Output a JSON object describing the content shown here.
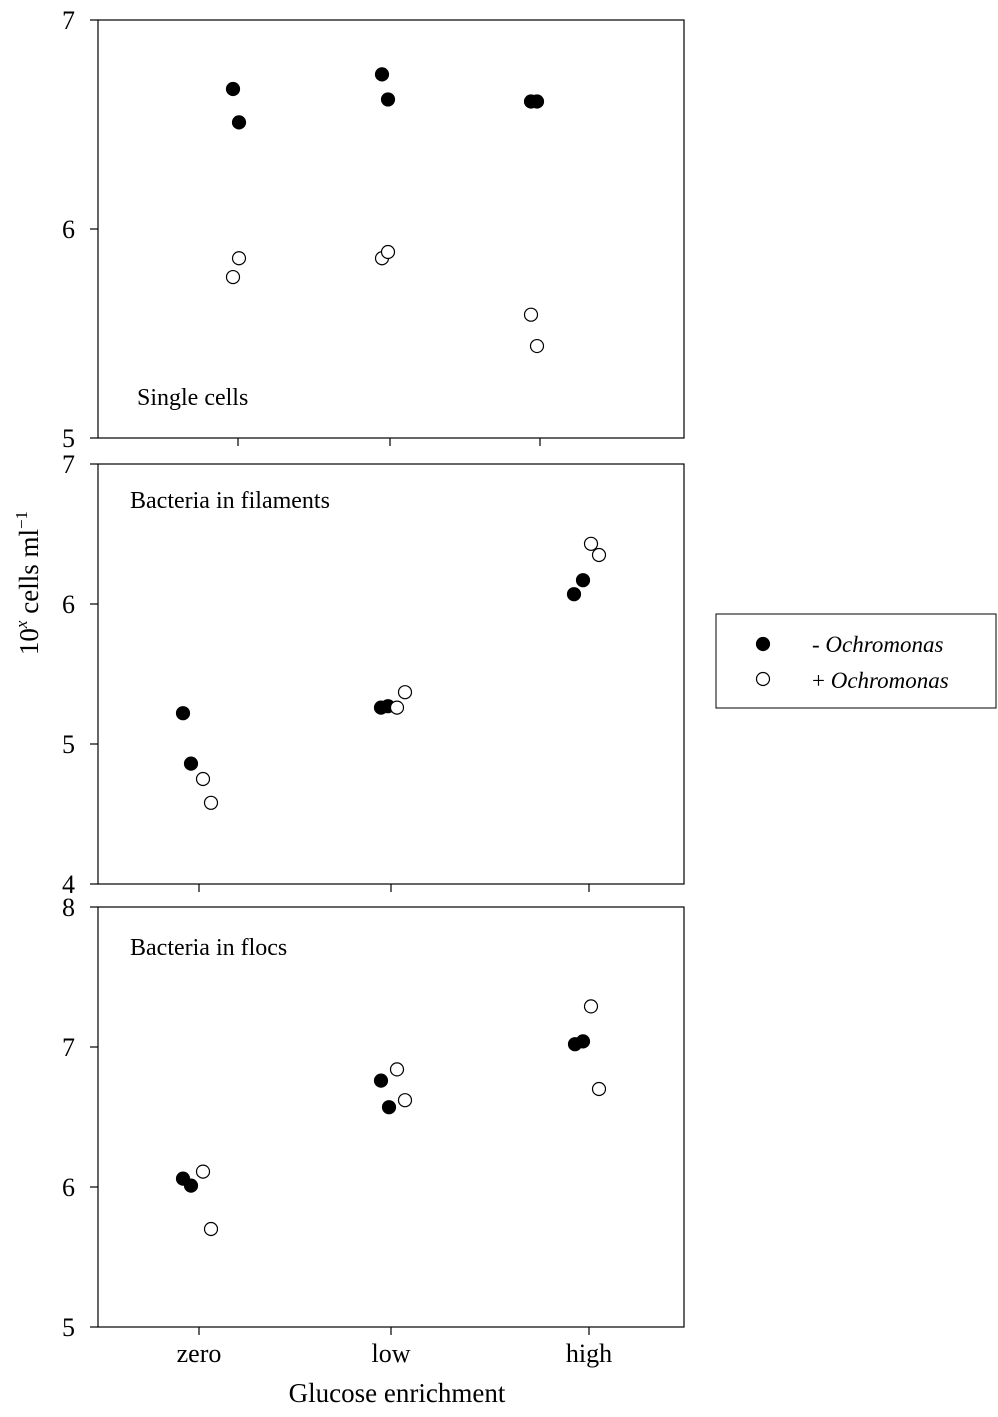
{
  "figure": {
    "ylabel_base": "10",
    "ylabel_exp": "x",
    "ylabel_unit": " cells ml",
    "ylabel_unit_exp": "−1",
    "xlabel": "Glucose enrichment"
  },
  "legend": {
    "location": "right of middle panel",
    "entries": [
      {
        "prefix": "- ",
        "name": "Ochromonas",
        "marker": "filled"
      },
      {
        "prefix": "+ ",
        "name": "Ochromonas",
        "marker": "open"
      }
    ]
  },
  "colors": {
    "marker": "#000000",
    "open_fill": "#ffffff",
    "axis": "#000000"
  },
  "chart_data": [
    {
      "type": "scatter",
      "title": "Single cells",
      "categories": [
        "zero",
        "low",
        "high"
      ],
      "ylim": [
        5,
        7
      ],
      "yticks": [
        "5",
        "6",
        "7"
      ],
      "show_xtick_labels": false,
      "series": [
        {
          "name": "- Ochromonas",
          "marker": "filled",
          "points": [
            {
              "category": "zero",
              "y": 6.67
            },
            {
              "category": "zero",
              "y": 6.51
            },
            {
              "category": "low",
              "y": 6.74
            },
            {
              "category": "low",
              "y": 6.62
            },
            {
              "category": "high",
              "y": 6.61
            },
            {
              "category": "high",
              "y": 6.61
            }
          ]
        },
        {
          "name": "+ Ochromonas",
          "marker": "open",
          "points": [
            {
              "category": "zero",
              "y": 5.77
            },
            {
              "category": "zero",
              "y": 5.86
            },
            {
              "category": "low",
              "y": 5.86
            },
            {
              "category": "low",
              "y": 5.89
            },
            {
              "category": "high",
              "y": 5.59
            },
            {
              "category": "high",
              "y": 5.44
            }
          ]
        }
      ]
    },
    {
      "type": "scatter",
      "title": "Bacteria in filaments",
      "categories": [
        "zero",
        "low",
        "high"
      ],
      "ylim": [
        4,
        7
      ],
      "yticks": [
        "4",
        "5",
        "6",
        "7"
      ],
      "show_xtick_labels": false,
      "series": [
        {
          "name": "- Ochromonas",
          "marker": "filled",
          "points": [
            {
              "category": "zero",
              "y": 5.22
            },
            {
              "category": "zero",
              "y": 4.86
            },
            {
              "category": "low",
              "y": 5.26
            },
            {
              "category": "low",
              "y": 5.27
            },
            {
              "category": "high",
              "y": 6.07
            },
            {
              "category": "high",
              "y": 6.17
            }
          ]
        },
        {
          "name": "+ Ochromonas",
          "marker": "open",
          "points": [
            {
              "category": "zero",
              "y": 4.75
            },
            {
              "category": "zero",
              "y": 4.58
            },
            {
              "category": "low",
              "y": 5.26
            },
            {
              "category": "low",
              "y": 5.37
            },
            {
              "category": "high",
              "y": 6.43
            },
            {
              "category": "high",
              "y": 6.35
            }
          ]
        }
      ]
    },
    {
      "type": "scatter",
      "title": "Bacteria in flocs",
      "categories": [
        "zero",
        "low",
        "high"
      ],
      "ylim": [
        5,
        8
      ],
      "yticks": [
        "5",
        "6",
        "7",
        "8"
      ],
      "show_xtick_labels": true,
      "series": [
        {
          "name": "- Ochromonas",
          "marker": "filled",
          "points": [
            {
              "category": "zero",
              "y": 6.06
            },
            {
              "category": "zero",
              "y": 6.01
            },
            {
              "category": "low",
              "y": 6.76
            },
            {
              "category": "low",
              "y": 6.57
            },
            {
              "category": "high",
              "y": 7.02
            },
            {
              "category": "high",
              "y": 7.04
            }
          ]
        },
        {
          "name": "+ Ochromonas",
          "marker": "open",
          "points": [
            {
              "category": "zero",
              "y": 6.11
            },
            {
              "category": "zero",
              "y": 5.7
            },
            {
              "category": "low",
              "y": 6.84
            },
            {
              "category": "low",
              "y": 6.62
            },
            {
              "category": "high",
              "y": 7.29
            },
            {
              "category": "high",
              "y": 6.7
            }
          ]
        }
      ]
    }
  ]
}
